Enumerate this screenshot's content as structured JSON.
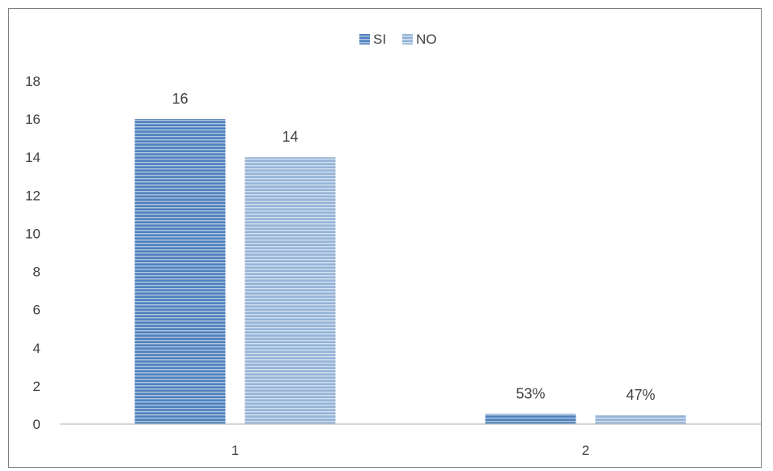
{
  "chart_data": {
    "type": "bar",
    "categories": [
      "1",
      "2"
    ],
    "series": [
      {
        "name": "SI",
        "values": [
          16,
          0.53
        ],
        "data_labels": [
          "16",
          "53%"
        ],
        "color": "#4f81bd"
      },
      {
        "name": "NO",
        "values": [
          14,
          0.47
        ],
        "data_labels": [
          "14",
          "47%"
        ],
        "color": "#95b3d7"
      }
    ],
    "title": "",
    "xlabel": "",
    "ylabel": "",
    "ylim": [
      0,
      18
    ],
    "yticks": [
      0,
      2,
      4,
      6,
      8,
      10,
      12,
      14,
      16,
      18
    ],
    "ytick_labels": [
      "0",
      "2",
      "4",
      "6",
      "8",
      "10",
      "12",
      "14",
      "16",
      "18"
    ],
    "grid": false,
    "legend": "top"
  }
}
